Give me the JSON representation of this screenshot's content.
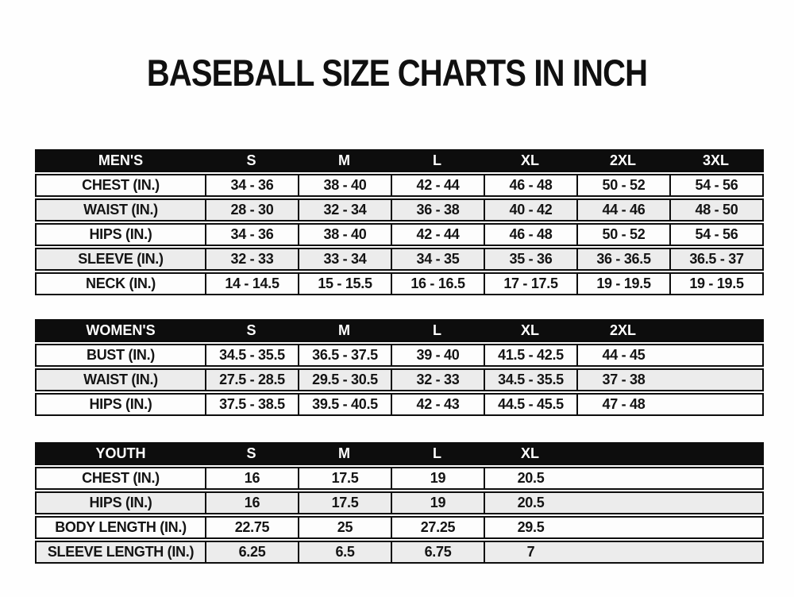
{
  "page": {
    "title": "BASEBALL SIZE CHARTS IN INCH"
  },
  "colors": {
    "header_bg": "#0d0d0d",
    "header_text": "#ffffff",
    "row_bg": "#fdfdfd",
    "row_alt_bg": "#ececec",
    "border": "#0d0d0d",
    "text": "#141414"
  },
  "chart_data": [
    {
      "type": "table",
      "name": "mens-size-chart",
      "unit": "inches",
      "header": [
        "MEN'S",
        "S",
        "M",
        "L",
        "XL",
        "2XL",
        "3XL"
      ],
      "rows": [
        [
          "CHEST (IN.)",
          "34 - 36",
          "38 - 40",
          "42 - 44",
          "46 - 48",
          "50 - 52",
          "54 - 56"
        ],
        [
          "WAIST (IN.)",
          "28 - 30",
          "32 - 34",
          "36 - 38",
          "40 - 42",
          "44 - 46",
          "48 - 50"
        ],
        [
          "HIPS (IN.)",
          "34 - 36",
          "38 - 40",
          "42 - 44",
          "46 - 48",
          "50 - 52",
          "54 - 56"
        ],
        [
          "SLEEVE (IN.)",
          "32 - 33",
          "33 - 34",
          "34 - 35",
          "35 - 36",
          "36 - 36.5",
          "36.5 - 37"
        ],
        [
          "NECK (IN.)",
          "14 - 14.5",
          "15 - 15.5",
          "16 - 16.5",
          "17 - 17.5",
          "19 - 19.5",
          "19 - 19.5"
        ]
      ]
    },
    {
      "type": "table",
      "name": "womens-size-chart",
      "unit": "inches",
      "header": [
        "WOMEN'S",
        "S",
        "M",
        "L",
        "XL",
        "2XL"
      ],
      "rows": [
        [
          "BUST (IN.)",
          "34.5 - 35.5",
          "36.5 - 37.5",
          "39 - 40",
          "41.5 - 42.5",
          "44 - 45"
        ],
        [
          "WAIST (IN.)",
          "27.5 - 28.5",
          "29.5 - 30.5",
          "32 - 33",
          "34.5 - 35.5",
          "37 - 38"
        ],
        [
          "HIPS (IN.)",
          "37.5 - 38.5",
          "39.5 - 40.5",
          "42 - 43",
          "44.5 - 45.5",
          "47 - 48"
        ]
      ]
    },
    {
      "type": "table",
      "name": "youth-size-chart",
      "unit": "inches",
      "header": [
        "YOUTH",
        "S",
        "M",
        "L",
        "XL"
      ],
      "rows": [
        [
          "CHEST (IN.)",
          "16",
          "17.5",
          "19",
          "20.5"
        ],
        [
          "HIPS (IN.)",
          "16",
          "17.5",
          "19",
          "20.5"
        ],
        [
          "BODY LENGTH (IN.)",
          "22.75",
          "25",
          "27.25",
          "29.5"
        ],
        [
          "SLEEVE LENGTH (IN.)",
          "6.25",
          "6.5",
          "6.75",
          "7"
        ]
      ]
    }
  ]
}
